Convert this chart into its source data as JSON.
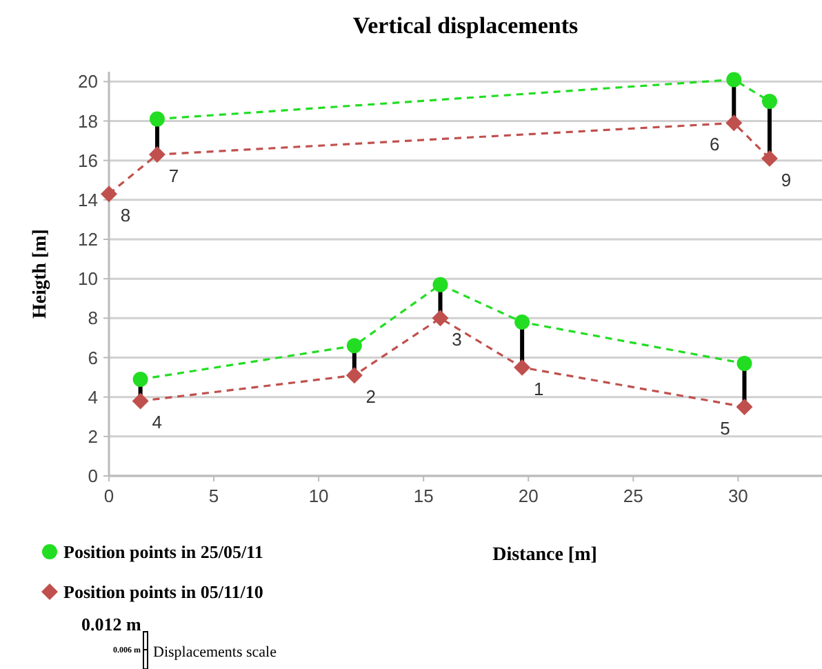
{
  "chart_data": {
    "type": "line",
    "title": "Vertical displacements",
    "xlabel": "Distance [m]",
    "ylabel": "Heigth [m]",
    "xlim": [
      0,
      34
    ],
    "xticks": [
      0,
      5,
      10,
      15,
      20,
      25,
      30
    ],
    "ylim": [
      0,
      20.5
    ],
    "yticks": [
      0,
      2,
      4,
      6,
      8,
      10,
      12,
      14,
      16,
      18,
      20
    ],
    "grid": "y",
    "legend": "bottom left",
    "line_style": "dashed",
    "series": [
      {
        "name": "Position points in 25/05/11",
        "color": "#22dd22",
        "marker": "circle",
        "x": [
          2.3,
          29.8,
          31.5
        ],
        "values": [
          18.1,
          20.1,
          19.0
        ]
      },
      {
        "name": "Position points in 05/11/10",
        "color": "#c0504d",
        "marker": "diamond",
        "x": [
          0,
          2.3,
          29.8,
          31.5
        ],
        "values": [
          14.3,
          16.3,
          17.9,
          16.1
        ]
      },
      {
        "color": "#22dd22",
        "marker": "circle",
        "x": [
          1.5,
          11.7,
          15.8,
          19.7,
          30.3
        ],
        "values": [
          4.9,
          6.6,
          9.7,
          7.8,
          5.7
        ]
      },
      {
        "color": "#c0504d",
        "marker": "diamond",
        "x": [
          1.5,
          11.7,
          15.8,
          19.7,
          30.3
        ],
        "values": [
          3.8,
          5.1,
          8.0,
          5.5,
          3.5
        ]
      }
    ],
    "annotations": [
      {
        "text": "8",
        "x": 0,
        "y": 14.3
      },
      {
        "text": "7",
        "x": 2.3,
        "y": 16.3
      },
      {
        "text": "6",
        "x": 29.8,
        "y": 17.9
      },
      {
        "text": "9",
        "x": 31.5,
        "y": 16.1
      },
      {
        "text": "4",
        "x": 1.5,
        "y": 3.8
      },
      {
        "text": "2",
        "x": 11.7,
        "y": 5.1
      },
      {
        "text": "3",
        "x": 15.8,
        "y": 8.0
      },
      {
        "text": "1",
        "x": 19.7,
        "y": 5.5
      },
      {
        "text": "5",
        "x": 30.3,
        "y": 3.5
      },
      "0.012 m",
      "0.006 m",
      "Displacements scale"
    ]
  }
}
